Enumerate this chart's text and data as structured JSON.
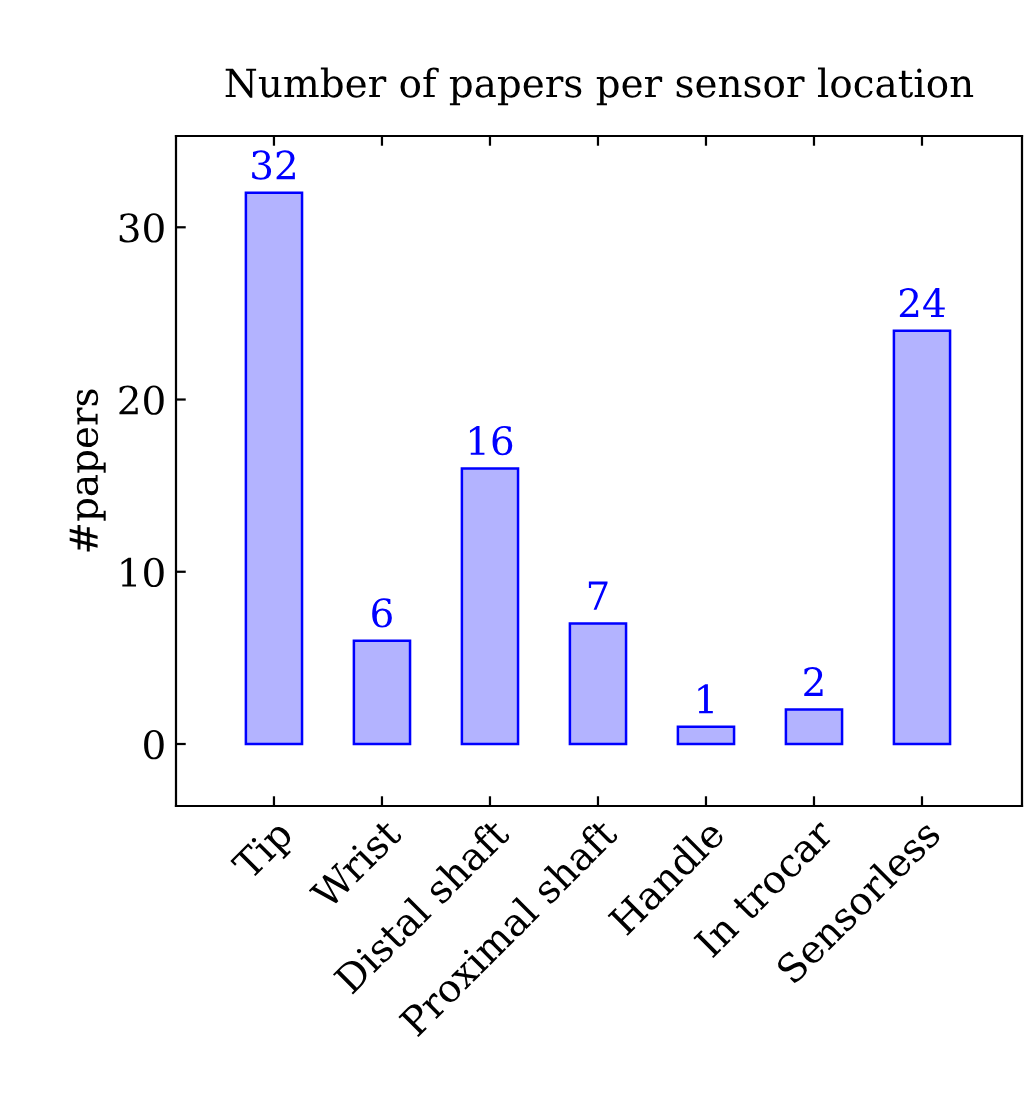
{
  "chart_data": {
    "type": "bar",
    "title": "Number of papers per sensor location",
    "ylabel": "#papers",
    "categories": [
      "Tip",
      "Wrist",
      "Distal shaft",
      "Proximal shaft",
      "Handle",
      "In trocar",
      "Sensorless"
    ],
    "series": [
      {
        "color": "#b3b3ff",
        "values": [
          32,
          6,
          16,
          7,
          1,
          2,
          24
        ]
      }
    ],
    "ylim": [
      -3.6,
      35.3
    ],
    "yticks": [
      0,
      10,
      20,
      30
    ],
    "data_labels": true,
    "grid": false,
    "legend": false
  }
}
